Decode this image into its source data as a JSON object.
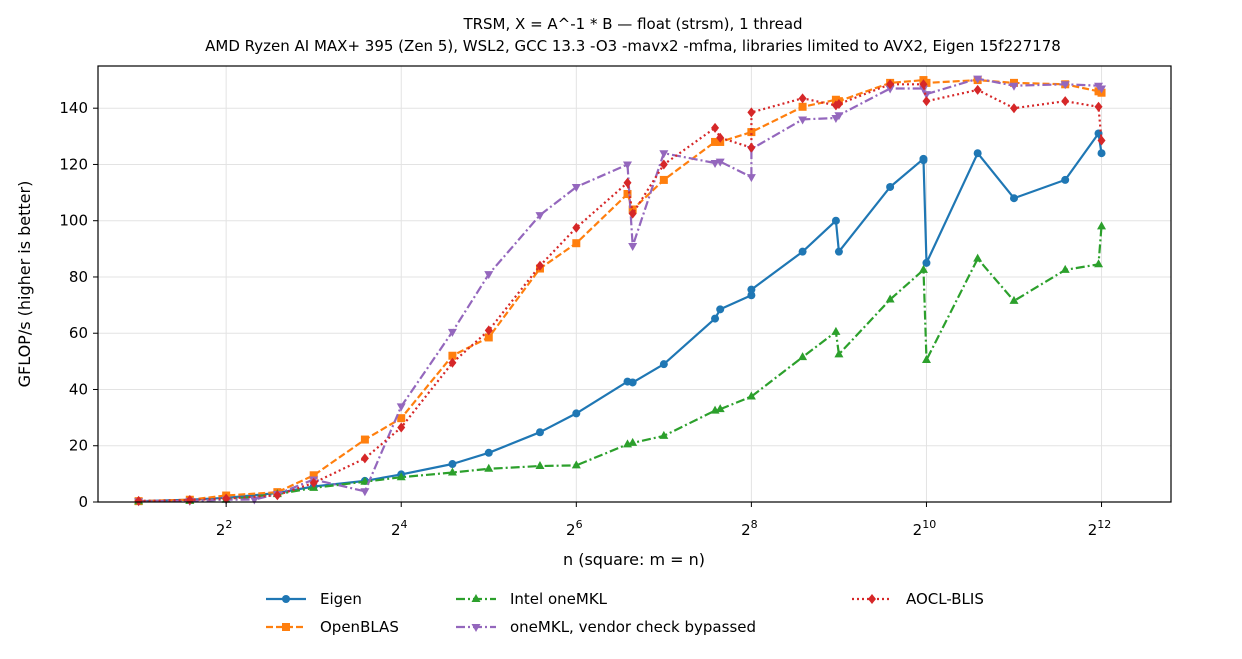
{
  "chart_data": {
    "type": "line",
    "title": "TRSM, X = A^-1 * B — float (strsm), 1 thread",
    "subtitle": "AMD Ryzen AI MAX+ 395 (Zen 5), WSL2, GCC 13.3 -O3 -mavx2 -mfma, libraries limited to AVX2, Eigen 15f227178",
    "xlabel": "n (square: m = n)",
    "ylabel": "GFLOP/s (higher is better)",
    "xscale": "log2",
    "xlim": [
      1.45,
      7100
    ],
    "ylim": [
      0,
      155
    ],
    "x_ticks": [
      {
        "value": 4,
        "base": "2",
        "exp": "2"
      },
      {
        "value": 16,
        "base": "2",
        "exp": "4"
      },
      {
        "value": 64,
        "base": "2",
        "exp": "6"
      },
      {
        "value": 256,
        "base": "2",
        "exp": "8"
      },
      {
        "value": 1024,
        "base": "2",
        "exp": "10"
      },
      {
        "value": 4096,
        "base": "2",
        "exp": "12"
      }
    ],
    "y_ticks": [
      {
        "value": 0,
        "label": "0"
      },
      {
        "value": 20,
        "label": "20"
      },
      {
        "value": 40,
        "label": "40"
      },
      {
        "value": 60,
        "label": "60"
      },
      {
        "value": 80,
        "label": "80"
      },
      {
        "value": 100,
        "label": "100"
      },
      {
        "value": 120,
        "label": "120"
      },
      {
        "value": 140,
        "label": "140"
      }
    ],
    "grid": true,
    "legend_position": "bottom",
    "series": [
      {
        "name": "Eigen",
        "color": "#1f77b4",
        "dash": "solid",
        "marker": "circle",
        "points": [
          [
            2,
            0.3
          ],
          [
            3,
            0.8
          ],
          [
            4,
            1.5
          ],
          [
            6,
            3.2
          ],
          [
            8,
            5.5
          ],
          [
            12,
            7.5
          ],
          [
            16,
            9.8
          ],
          [
            24,
            13.5
          ],
          [
            32,
            17.5
          ],
          [
            48,
            24.8
          ],
          [
            64,
            31.5
          ],
          [
            96,
            42.8
          ],
          [
            100,
            42.5
          ],
          [
            128,
            49
          ],
          [
            192,
            65.2
          ],
          [
            200,
            68.5
          ],
          [
            256,
            73.5
          ],
          [
            256,
            75.5
          ],
          [
            384,
            89
          ],
          [
            500,
            100
          ],
          [
            512,
            89
          ],
          [
            768,
            112
          ],
          [
            1000,
            122
          ],
          [
            1000,
            121.5
          ],
          [
            1024,
            85
          ],
          [
            1536,
            124
          ],
          [
            2048,
            108
          ],
          [
            3072,
            114.5
          ],
          [
            4000,
            131
          ],
          [
            4096,
            124
          ]
        ]
      },
      {
        "name": "OpenBLAS",
        "color": "#ff7f0e",
        "dash": "dashed",
        "marker": "square",
        "points": [
          [
            2,
            0.3
          ],
          [
            3,
            0.8
          ],
          [
            4,
            2.3
          ],
          [
            6,
            3.5
          ],
          [
            8,
            9.5
          ],
          [
            12,
            22.2
          ],
          [
            16,
            29.8
          ],
          [
            24,
            52
          ],
          [
            32,
            58.5
          ],
          [
            48,
            83
          ],
          [
            64,
            92
          ],
          [
            96,
            109.5
          ],
          [
            100,
            104
          ],
          [
            128,
            114.5
          ],
          [
            192,
            128
          ],
          [
            200,
            128
          ],
          [
            256,
            131.5
          ],
          [
            384,
            140.5
          ],
          [
            500,
            143
          ],
          [
            512,
            142.5
          ],
          [
            768,
            149
          ],
          [
            1000,
            150
          ],
          [
            1024,
            149
          ],
          [
            1536,
            150
          ],
          [
            2048,
            149
          ],
          [
            3072,
            148.5
          ],
          [
            4000,
            146
          ],
          [
            4096,
            145.5
          ]
        ]
      },
      {
        "name": "Intel oneMKL",
        "color": "#2ca02c",
        "dash": "dashdot",
        "marker": "triangle-up",
        "points": [
          [
            2,
            0.2
          ],
          [
            3,
            0.4
          ],
          [
            4,
            0.8
          ],
          [
            6,
            2.8
          ],
          [
            8,
            5
          ],
          [
            12,
            7.2
          ],
          [
            16,
            8.8
          ],
          [
            24,
            10.5
          ],
          [
            32,
            11.8
          ],
          [
            48,
            12.8
          ],
          [
            64,
            13
          ],
          [
            96,
            20.5
          ],
          [
            100,
            21
          ],
          [
            128,
            23.5
          ],
          [
            192,
            32.5
          ],
          [
            200,
            33
          ],
          [
            256,
            37.5
          ],
          [
            384,
            51.5
          ],
          [
            500,
            60.5
          ],
          [
            512,
            52.5
          ],
          [
            768,
            72
          ],
          [
            1000,
            82.5
          ],
          [
            1024,
            50.5
          ],
          [
            1536,
            86.5
          ],
          [
            2048,
            71.5
          ],
          [
            3072,
            82.5
          ],
          [
            4000,
            84.5
          ],
          [
            4096,
            98
          ]
        ]
      },
      {
        "name": "oneMKL, vendor check bypassed",
        "color": "#9467bd",
        "dash": "dashdot",
        "marker": "triangle-down",
        "points": [
          [
            2,
            0.2
          ],
          [
            3,
            0.4
          ],
          [
            4,
            0.8
          ],
          [
            5,
            0.9
          ],
          [
            6,
            2.8
          ],
          [
            8,
            8
          ],
          [
            12,
            3.8
          ],
          [
            16,
            34
          ],
          [
            24,
            60.5
          ],
          [
            32,
            81
          ],
          [
            48,
            102
          ],
          [
            64,
            112
          ],
          [
            96,
            120
          ],
          [
            100,
            91
          ],
          [
            128,
            124
          ],
          [
            192,
            120.5
          ],
          [
            200,
            121
          ],
          [
            256,
            115.5
          ],
          [
            256,
            125.5
          ],
          [
            384,
            136
          ],
          [
            500,
            136.5
          ],
          [
            512,
            137.5
          ],
          [
            768,
            147
          ],
          [
            1000,
            147
          ],
          [
            1024,
            145
          ],
          [
            1536,
            150.5
          ],
          [
            2048,
            148
          ],
          [
            3072,
            148.5
          ],
          [
            4000,
            148
          ],
          [
            4096,
            147
          ]
        ]
      },
      {
        "name": "AOCL-BLIS",
        "color": "#d62728",
        "dash": "dotted",
        "marker": "diamond",
        "points": [
          [
            2,
            0.4
          ],
          [
            3,
            0.7
          ],
          [
            4,
            1.2
          ],
          [
            6,
            2.4
          ],
          [
            8,
            6.8
          ],
          [
            12,
            15.5
          ],
          [
            16,
            26.5
          ],
          [
            24,
            49.5
          ],
          [
            32,
            61
          ],
          [
            48,
            84
          ],
          [
            64,
            97.5
          ],
          [
            96,
            113.5
          ],
          [
            100,
            102.5
          ],
          [
            128,
            120
          ],
          [
            192,
            133
          ],
          [
            200,
            129.5
          ],
          [
            256,
            126
          ],
          [
            256,
            138.5
          ],
          [
            384,
            143.5
          ],
          [
            500,
            141
          ],
          [
            512,
            141.5
          ],
          [
            768,
            148.5
          ],
          [
            1000,
            148.5
          ],
          [
            1024,
            142.5
          ],
          [
            1536,
            146.5
          ],
          [
            2048,
            140
          ],
          [
            3072,
            142.5
          ],
          [
            4000,
            140.5
          ],
          [
            4096,
            128.5
          ]
        ]
      }
    ]
  }
}
